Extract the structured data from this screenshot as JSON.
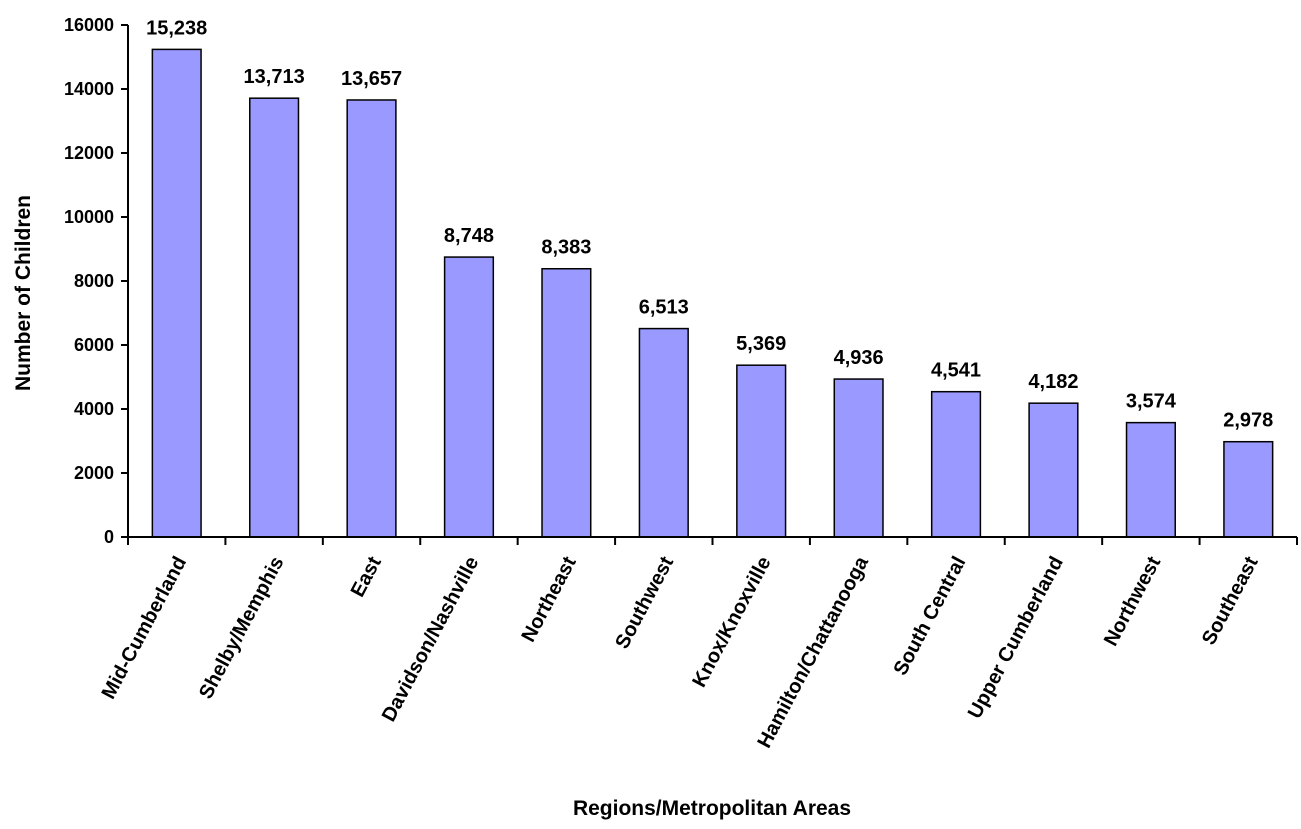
{
  "chart_data": {
    "type": "bar",
    "title": "",
    "xlabel": "Regions/Metropolitan Areas",
    "ylabel": "Number of Children",
    "categories": [
      "Mid-Cumberland",
      "Shelby/Memphis",
      "East",
      "Davidson/Nashville",
      "Northeast",
      "Southwest",
      "Knox/Knoxville",
      "Hamilton/Chattanooga",
      "South Central",
      "Upper Cumberland",
      "Northwest",
      "Southeast"
    ],
    "values": [
      15238,
      13713,
      13657,
      8748,
      8383,
      6513,
      5369,
      4936,
      4541,
      4182,
      3574,
      2978
    ],
    "value_labels": [
      "15,238",
      "13,713",
      "13,657",
      "8,748",
      "8,383",
      "6,513",
      "5,369",
      "4,936",
      "4,541",
      "4,182",
      "3,574",
      "2,978"
    ],
    "ylim": [
      0,
      16000
    ],
    "yticks": [
      0,
      2000,
      4000,
      6000,
      8000,
      10000,
      12000,
      14000,
      16000
    ],
    "grid": false,
    "legend": "none",
    "bar_color": "#9999ff",
    "bar_edge_color": "#000000"
  }
}
